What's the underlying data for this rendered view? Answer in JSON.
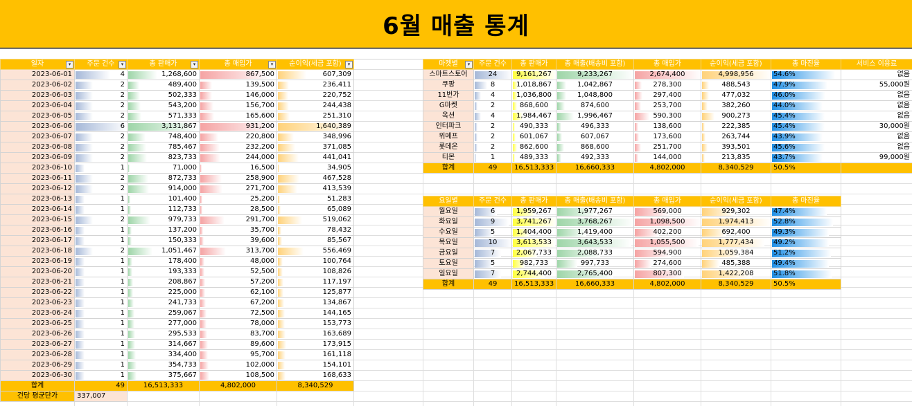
{
  "title": "6월 매출 통계",
  "filter_icon": "dropdown-filter-icon",
  "colors": {
    "header": "#ffc000",
    "label_fill": "#fce4d6",
    "bar_blue": "#a5b8d8",
    "bar_green": "#9ed5a8",
    "bar_red": "#f5a3a3",
    "bar_orange": "#ffd27a",
    "bar_yellow": "#ffff40",
    "bar_sky": "#1f8fe6"
  },
  "daily": {
    "headers": [
      "일자",
      "주문 건수",
      "총 판매가",
      "총 매입가",
      "순이익(세금 포함)"
    ],
    "rows": [
      [
        "2023-06-01",
        "4",
        "1,268,600",
        "867,500",
        "607,309"
      ],
      [
        "2023-06-02",
        "2",
        "489,400",
        "139,500",
        "236,411"
      ],
      [
        "2023-06-03",
        "2",
        "502,333",
        "146,000",
        "220,752"
      ],
      [
        "2023-06-04",
        "2",
        "543,200",
        "156,700",
        "244,438"
      ],
      [
        "2023-06-05",
        "2",
        "571,333",
        "165,600",
        "251,310"
      ],
      [
        "2023-06-06",
        "6",
        "3,131,867",
        "931,200",
        "1,640,389"
      ],
      [
        "2023-06-07",
        "2",
        "748,400",
        "220,800",
        "348,996"
      ],
      [
        "2023-06-08",
        "2",
        "785,467",
        "232,200",
        "371,085"
      ],
      [
        "2023-06-09",
        "2",
        "823,733",
        "244,000",
        "441,041"
      ],
      [
        "2023-06-10",
        "1",
        "71,000",
        "16,500",
        "34,905"
      ],
      [
        "2023-06-11",
        "2",
        "872,733",
        "258,900",
        "467,528"
      ],
      [
        "2023-06-12",
        "2",
        "914,000",
        "271,700",
        "413,539"
      ],
      [
        "2023-06-13",
        "1",
        "101,400",
        "25,200",
        "51,283"
      ],
      [
        "2023-06-14",
        "1",
        "112,733",
        "28,500",
        "65,089"
      ],
      [
        "2023-06-15",
        "2",
        "979,733",
        "291,700",
        "519,062"
      ],
      [
        "2023-06-16",
        "1",
        "137,200",
        "35,700",
        "78,432"
      ],
      [
        "2023-06-17",
        "1",
        "150,333",
        "39,600",
        "85,567"
      ],
      [
        "2023-06-18",
        "2",
        "1,051,467",
        "313,700",
        "556,469"
      ],
      [
        "2023-06-19",
        "1",
        "178,400",
        "48,000",
        "100,764"
      ],
      [
        "2023-06-20",
        "1",
        "193,333",
        "52,500",
        "108,826"
      ],
      [
        "2023-06-21",
        "1",
        "208,867",
        "57,200",
        "117,197"
      ],
      [
        "2023-06-22",
        "1",
        "225,000",
        "62,100",
        "125,877"
      ],
      [
        "2023-06-23",
        "1",
        "241,733",
        "67,200",
        "134,867"
      ],
      [
        "2023-06-24",
        "1",
        "259,067",
        "72,500",
        "144,165"
      ],
      [
        "2023-06-25",
        "1",
        "277,000",
        "78,000",
        "153,773"
      ],
      [
        "2023-06-26",
        "1",
        "295,533",
        "83,700",
        "163,689"
      ],
      [
        "2023-06-27",
        "1",
        "314,667",
        "89,600",
        "173,915"
      ],
      [
        "2023-06-28",
        "1",
        "334,400",
        "95,700",
        "161,118"
      ],
      [
        "2023-06-29",
        "1",
        "354,733",
        "102,000",
        "154,101"
      ],
      [
        "2023-06-30",
        "1",
        "375,667",
        "108,500",
        "168,633"
      ]
    ],
    "total": [
      "합계",
      "49",
      "16,513,333",
      "4,802,000",
      "8,340,529"
    ],
    "avg_label": "건당 평균단가",
    "avg_value": "337,007"
  },
  "market": {
    "headers": [
      "마켓별",
      "주문 건수",
      "총 판매가",
      "총 매출(배송비 포함)",
      "총 매입가",
      "순이익(세금 포함)",
      "총 마진율",
      "서비스 이용료"
    ],
    "rows": [
      [
        "스마트스토어",
        "24",
        "9,161,267",
        "9,233,267",
        "2,674,400",
        "4,998,956",
        "54.6%",
        "없음"
      ],
      [
        "쿠팡",
        "8",
        "1,018,867",
        "1,042,867",
        "278,300",
        "488,543",
        "47.9%",
        "55,000원"
      ],
      [
        "11번가",
        "4",
        "1,036,800",
        "1,048,800",
        "297,400",
        "477,032",
        "46.0%",
        "없음"
      ],
      [
        "G마켓",
        "2",
        "868,600",
        "874,600",
        "253,700",
        "382,260",
        "44.0%",
        "없음"
      ],
      [
        "옥션",
        "4",
        "1,984,467",
        "1,996,467",
        "590,300",
        "900,273",
        "45.4%",
        "없음"
      ],
      [
        "인터파크",
        "2",
        "490,333",
        "496,333",
        "138,600",
        "222,385",
        "45.4%",
        "30,000원"
      ],
      [
        "위메프",
        "2",
        "601,067",
        "607,067",
        "173,600",
        "263,744",
        "43.9%",
        "없음"
      ],
      [
        "롯데온",
        "2",
        "862,600",
        "868,600",
        "251,700",
        "393,501",
        "45.6%",
        "없음"
      ],
      [
        "티몬",
        "1",
        "489,333",
        "492,333",
        "144,000",
        "213,835",
        "43.7%",
        "99,000원"
      ]
    ],
    "total": [
      "합계",
      "49",
      "16,513,333",
      "16,660,333",
      "4,802,000",
      "8,340,529",
      "50.5%"
    ]
  },
  "weekday": {
    "headers": [
      "요일별",
      "주문 건수",
      "총 판매가",
      "총 매출(배송비 포함)",
      "총 매입가",
      "순이익(세금 포함)",
      "총 마진율"
    ],
    "rows": [
      [
        "월요일",
        "6",
        "1,959,267",
        "1,977,267",
        "569,000",
        "929,302",
        "47.4%"
      ],
      [
        "화요일",
        "9",
        "3,741,267",
        "3,768,267",
        "1,098,500",
        "1,974,413",
        "52.8%"
      ],
      [
        "수요일",
        "5",
        "1,404,400",
        "1,419,400",
        "402,200",
        "692,400",
        "49.3%"
      ],
      [
        "목요일",
        "10",
        "3,613,533",
        "3,643,533",
        "1,055,500",
        "1,777,434",
        "49.2%"
      ],
      [
        "금요일",
        "7",
        "2,067,733",
        "2,088,733",
        "594,900",
        "1,059,384",
        "51.2%"
      ],
      [
        "토요일",
        "5",
        "982,733",
        "997,733",
        "274,600",
        "485,388",
        "49.4%"
      ],
      [
        "일요일",
        "7",
        "2,744,400",
        "2,765,400",
        "807,300",
        "1,422,208",
        "51.8%"
      ]
    ],
    "total": [
      "합계",
      "49",
      "16,513,333",
      "16,660,333",
      "4,802,000",
      "8,340,529",
      "50.5%"
    ]
  }
}
